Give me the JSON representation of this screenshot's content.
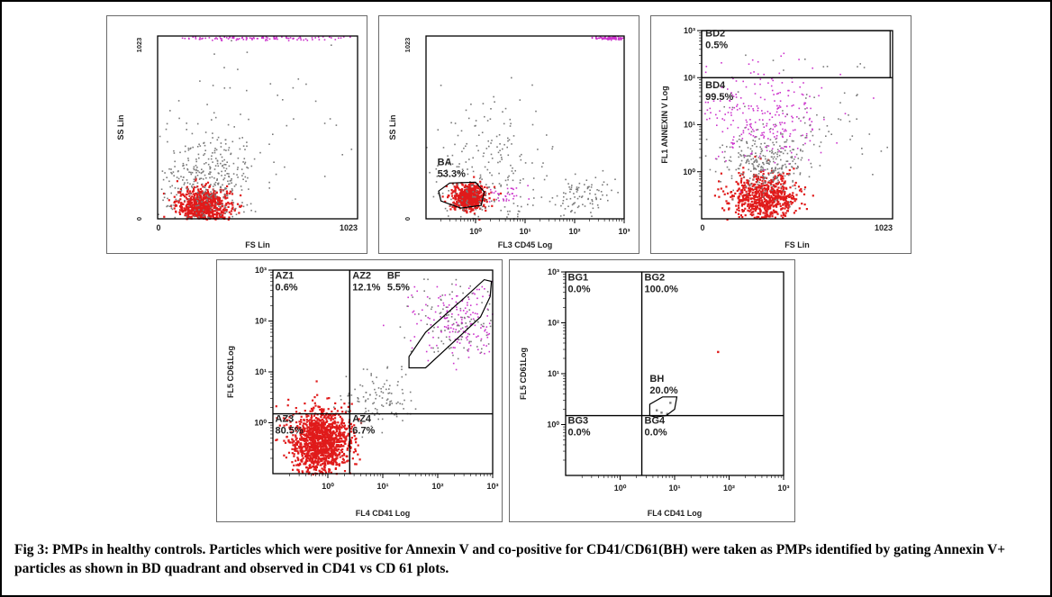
{
  "figure_caption": "Fig 3: PMPs in healthy controls. Particles which were positive for Annexin V and co-positive for CD41/CD61(BH) were taken as PMPs identified by gating Annexin V+ particles as shown in BD quadrant and observed in CD41 vs CD 61 plots.",
  "colors": {
    "event_dense": "#e01b1b",
    "event_sparse": "#7a7a7a",
    "event_annexin": "#cc33cc",
    "gate_line": "#000000"
  },
  "chart_data": [
    {
      "id": "fs-ss",
      "type": "scatter",
      "title": "",
      "xlabel": "FS Lin",
      "ylabel": "SS Lin",
      "x_scale": "linear",
      "y_scale": "linear",
      "xlim": [
        0,
        1023
      ],
      "ylim": [
        0,
        1023
      ],
      "x_ticks": [
        "0",
        "1023"
      ],
      "y_ticks": [
        "0",
        "1023"
      ],
      "regions": [],
      "populations": [
        {
          "color": "event_dense",
          "cx": 230,
          "cy": 80,
          "sx": 70,
          "sy": 50,
          "n": 700
        },
        {
          "color": "event_sparse",
          "cx": 250,
          "cy": 200,
          "sx": 120,
          "sy": 140,
          "n": 380
        },
        {
          "color": "event_sparse",
          "cx": 550,
          "cy": 600,
          "sx": 300,
          "sy": 280,
          "n": 60
        },
        {
          "color": "event_annexin",
          "cx": 520,
          "cy": 1015,
          "sx": 250,
          "sy": 6,
          "n": 120
        }
      ]
    },
    {
      "id": "cd45-ss",
      "type": "scatter",
      "title": "",
      "xlabel": "FL3 CD45 Log",
      "ylabel": "SS Lin",
      "x_scale": "log",
      "y_scale": "linear",
      "xlim": [
        0.1,
        1000
      ],
      "ylim": [
        0,
        1023
      ],
      "x_ticks": [
        "10⁰",
        "10¹",
        "10²",
        "10³"
      ],
      "y_ticks": [
        "0",
        "1023"
      ],
      "regions": [
        {
          "name": "BA",
          "percent": "53.3%",
          "label_at": [
            0.17,
            300
          ],
          "polygon": [
            [
              0.2,
              100
            ],
            [
              0.18,
              155
            ],
            [
              0.3,
              200
            ],
            [
              1.0,
              205
            ],
            [
              1.5,
              150
            ],
            [
              1.3,
              75
            ],
            [
              0.5,
              60
            ]
          ]
        }
      ],
      "populations": [
        {
          "color": "event_dense",
          "cx": 0.7,
          "cy": 125,
          "sx": 0.17,
          "sy": 35,
          "n": 600
        },
        {
          "color": "event_sparse",
          "cx": 1.5,
          "cy": 250,
          "sx": 0.6,
          "sy": 200,
          "n": 260
        },
        {
          "color": "event_sparse",
          "cx": 150,
          "cy": 140,
          "sx": 0.3,
          "sy": 50,
          "n": 90
        },
        {
          "color": "event_annexin",
          "cx": 600,
          "cy": 1015,
          "sx": 0.2,
          "sy": 6,
          "n": 110
        },
        {
          "color": "event_annexin",
          "cx": 4,
          "cy": 130,
          "sx": 0.2,
          "sy": 30,
          "n": 30
        }
      ]
    },
    {
      "id": "fs-annexin",
      "type": "scatter",
      "title": "",
      "xlabel": "FS Lin",
      "ylabel": "FL1 ANNEXIN V Log",
      "x_scale": "linear",
      "y_scale": "log",
      "xlim": [
        0,
        1023
      ],
      "ylim": [
        0.1,
        1000
      ],
      "x_ticks": [
        "0",
        "1023"
      ],
      "y_ticks": [
        "10⁰",
        "10¹",
        "10²",
        "10³"
      ],
      "regions": [
        {
          "name": "BD2",
          "percent": "0.5%",
          "label_at": [
            20,
            750
          ],
          "polygon": [
            [
              0,
              1000
            ],
            [
              1010,
              1000
            ],
            [
              1010,
              100
            ],
            [
              0,
              100
            ]
          ]
        },
        {
          "name": "BD4",
          "percent": "99.5%",
          "label_at": [
            20,
            60
          ],
          "polygon": [
            [
              0,
              100
            ],
            [
              1023,
              100
            ]
          ]
        }
      ],
      "populations": [
        {
          "color": "event_dense",
          "cx": 330,
          "cy": 0.3,
          "sx": 90,
          "sy": 0.25,
          "n": 650
        },
        {
          "color": "event_sparse",
          "cx": 330,
          "cy": 1.5,
          "sx": 110,
          "sy": 0.3,
          "n": 300
        },
        {
          "color": "event_annexin",
          "cx": 320,
          "cy": 15,
          "sx": 180,
          "sy": 0.55,
          "n": 260
        },
        {
          "color": "event_sparse",
          "cx": 600,
          "cy": 10,
          "sx": 200,
          "sy": 0.5,
          "n": 60
        },
        {
          "color": "event_sparse",
          "cx": 500,
          "cy": 200,
          "sx": 250,
          "sy": 0.15,
          "n": 8
        }
      ]
    },
    {
      "id": "cd41-cd61-healthy",
      "type": "scatter",
      "title": "",
      "xlabel": "FL4 CD41 Log",
      "ylabel": "FL5 CD61Log",
      "x_scale": "log",
      "y_scale": "log",
      "xlim": [
        0.1,
        1000
      ],
      "ylim": [
        0.1,
        1000
      ],
      "x_ticks": [
        "10⁰",
        "10¹",
        "10²",
        "10³"
      ],
      "y_ticks": [
        "10⁰",
        "10¹",
        "10²",
        "10³"
      ],
      "quadrant_lines": {
        "x": 2.5,
        "y": 1.5
      },
      "regions": [
        {
          "name": "AZ1",
          "percent": "0.6%",
          "label_at": [
            0.11,
            680
          ]
        },
        {
          "name": "AZ2",
          "percent": "12.1%",
          "label_at": [
            2.8,
            680
          ]
        },
        {
          "name": "AZ3",
          "percent": "80.5%",
          "label_at": [
            0.11,
            1.05
          ]
        },
        {
          "name": "AZ4",
          "percent": "6.7%",
          "label_at": [
            2.8,
            1.05
          ]
        },
        {
          "name": "BF",
          "percent": "5.5%",
          "label_at": [
            12,
            680
          ],
          "polygon": [
            [
              30,
              12
            ],
            [
              30,
              20
            ],
            [
              60,
              60
            ],
            [
              300,
              280
            ],
            [
              700,
              650
            ],
            [
              950,
              600
            ],
            [
              900,
              300
            ],
            [
              600,
              120
            ],
            [
              200,
              40
            ],
            [
              60,
              12
            ]
          ]
        }
      ],
      "populations": [
        {
          "color": "event_dense",
          "cx": 0.7,
          "cy": 0.45,
          "sx": 0.28,
          "sy": 0.32,
          "n": 1300
        },
        {
          "color": "event_sparse",
          "cx": 8,
          "cy": 3,
          "sx": 0.35,
          "sy": 0.3,
          "n": 110
        },
        {
          "color": "event_annexin",
          "cx": 250,
          "cy": 100,
          "sx": 0.45,
          "sy": 0.4,
          "n": 180
        },
        {
          "color": "event_sparse",
          "cx": 250,
          "cy": 100,
          "sx": 0.45,
          "sy": 0.4,
          "n": 120
        }
      ]
    },
    {
      "id": "cd41-cd61-gated",
      "type": "scatter",
      "title": "",
      "xlabel": "FL4 CD41 Log",
      "ylabel": "FL5 CD61Log",
      "x_scale": "log",
      "y_scale": "log",
      "xlim": [
        0.1,
        1000
      ],
      "ylim": [
        0.1,
        1000
      ],
      "x_ticks": [
        "10⁰",
        "10¹",
        "10²",
        "10³"
      ],
      "y_ticks": [
        "10⁰",
        "10¹",
        "10²",
        "10³"
      ],
      "quadrant_lines": {
        "x": 2.5,
        "y": 1.5
      },
      "regions": [
        {
          "name": "BG1",
          "percent": "0.0%",
          "label_at": [
            0.11,
            680
          ]
        },
        {
          "name": "BG2",
          "percent": "100.0%",
          "label_at": [
            2.8,
            680
          ]
        },
        {
          "name": "BG3",
          "percent": "0.0%",
          "label_at": [
            0.11,
            1.05
          ]
        },
        {
          "name": "BG4",
          "percent": "0.0%",
          "label_at": [
            2.8,
            1.05
          ]
        },
        {
          "name": "BH",
          "percent": "20.0%",
          "label_at": [
            3.5,
            7
          ],
          "polygon": [
            [
              3.5,
              1.5
            ],
            [
              3.5,
              2.5
            ],
            [
              6,
              3.5
            ],
            [
              11,
              3.5
            ],
            [
              10,
              2
            ],
            [
              7,
              1.5
            ],
            [
              4.5,
              1.4
            ]
          ]
        }
      ],
      "points": [
        {
          "color": "event_dense",
          "x": 60,
          "y": 28
        },
        {
          "color": "event_sparse",
          "x": 8,
          "y": 2.8
        },
        {
          "color": "event_sparse",
          "x": 5.5,
          "y": 1.8
        },
        {
          "color": "event_sparse",
          "x": 7,
          "y": 1.7
        },
        {
          "color": "event_sparse",
          "x": 4.5,
          "y": 2.0
        }
      ]
    }
  ]
}
